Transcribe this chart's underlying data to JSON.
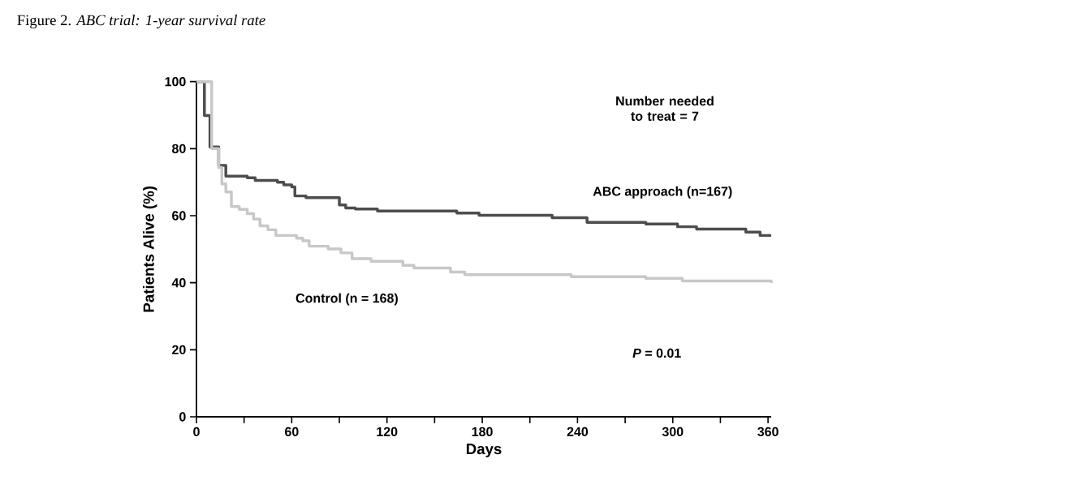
{
  "chart_data": {
    "type": "step",
    "title": "Figure 2. *ABC trial: 1-year survival rate*",
    "xlabel": "Days",
    "ylabel": "Patients Alive (%)",
    "xlim": [
      0,
      362
    ],
    "ylim": [
      0,
      100
    ],
    "xticks": [
      0,
      {
        "value": 30,
        "label": null
      },
      60,
      {
        "value": 90,
        "label": null
      },
      120,
      {
        "value": 150,
        "label": null
      },
      180,
      {
        "value": 210,
        "label": null
      },
      240,
      {
        "value": 270,
        "label": null
      },
      300,
      {
        "value": 330,
        "label": null
      },
      360
    ],
    "yticks": [
      0,
      20,
      40,
      60,
      80,
      100
    ],
    "legend": false,
    "annotations": [
      "Number needed to treat = 7",
      "*P* = 0.01"
    ],
    "series": [
      {
        "name": "ABC approach (n=167)",
        "color": "#4d4d4d",
        "x": [
          0,
          5,
          8.5,
          14,
          18.5,
          32,
          37,
          51,
          55,
          60,
          62,
          69,
          90,
          94,
          100,
          114,
          164,
          178,
          224,
          246,
          283,
          303,
          315,
          346,
          355,
          362
        ],
        "values": [
          100,
          89.9,
          80.5,
          75,
          71.8,
          71.3,
          70.5,
          70,
          69.2,
          68.6,
          65.9,
          65.4,
          63.2,
          62.3,
          62,
          61.4,
          60.8,
          60.1,
          59.4,
          58,
          57.5,
          56.7,
          56,
          55.1,
          54.1,
          54.1
        ]
      },
      {
        "name": "Control (n = 168)",
        "color": "#c8c8c8",
        "x": [
          0,
          9.6,
          14,
          16,
          18.5,
          22,
          27,
          32,
          36,
          40,
          45,
          50,
          63,
          67,
          71,
          83,
          91,
          98,
          110,
          130,
          137,
          160,
          169,
          236,
          283,
          306,
          362
        ],
        "values": [
          100,
          80,
          74.4,
          69.5,
          67.1,
          62.7,
          61.9,
          60.6,
          59,
          57,
          55.8,
          54.1,
          53.3,
          52.5,
          50.9,
          50.1,
          48.9,
          47.2,
          46.4,
          45.2,
          44.4,
          43.2,
          42.4,
          41.8,
          41.3,
          40.5,
          39.9
        ]
      }
    ]
  }
}
